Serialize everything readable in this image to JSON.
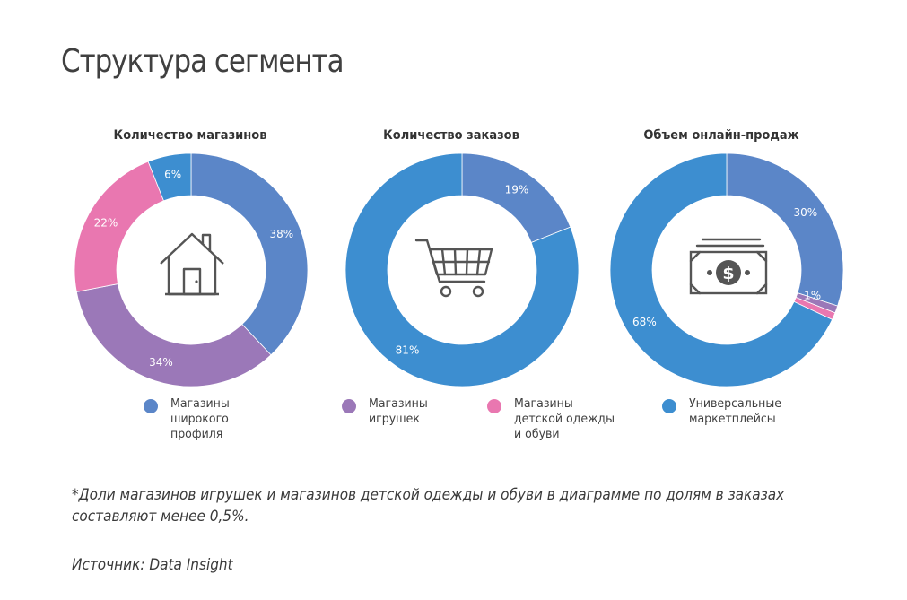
{
  "page": {
    "title": "Структура сегмента",
    "footnote": "*Доли магазинов игрушек и магазинов детской одежды и обуви в диаграмме по долям в заказах составляют менее 0,5%.",
    "source": "Источник: Data Insight"
  },
  "colors": {
    "broad_profile": "#5b86c8",
    "toys": "#9b78b8",
    "kids_clothing": "#e977b0",
    "marketplaces": "#3d8ed0"
  },
  "legend": [
    {
      "label": "Магазины\nширокого\nпрофиля",
      "color": "#5b86c8"
    },
    {
      "label": "Магазины\nигрушек",
      "color": "#9b78b8"
    },
    {
      "label": "Магазины\nдетской одежды\nи обуви",
      "color": "#e977b0"
    },
    {
      "label": "Универсальные\nмаркетплейсы",
      "color": "#3d8ed0"
    }
  ],
  "chart_data": [
    {
      "type": "pie",
      "title": "Количество магазинов",
      "center_icon": "house-icon",
      "slices": [
        {
          "category": "Магазины широкого профиля",
          "value": 38,
          "label": "38%",
          "color": "#5b86c8"
        },
        {
          "category": "Магазины игрушек",
          "value": 34,
          "label": "34%",
          "color": "#9b78b8"
        },
        {
          "category": "Магазины детской одежды и обуви",
          "value": 22,
          "label": "22%",
          "color": "#e977b0"
        },
        {
          "category": "Универсальные маркетплейсы",
          "value": 6,
          "label": "6%",
          "color": "#3d8ed0"
        }
      ]
    },
    {
      "type": "pie",
      "title": "Количество заказов",
      "center_icon": "shopping-cart-icon",
      "slices": [
        {
          "category": "Магазины широкого профиля",
          "value": 19,
          "label": "19%",
          "color": "#5b86c8"
        },
        {
          "category": "Универсальные маркетплейсы",
          "value": 81,
          "label": "81%",
          "color": "#3d8ed0"
        }
      ]
    },
    {
      "type": "pie",
      "title": "Объем онлайн-продаж",
      "center_icon": "money-icon",
      "slices": [
        {
          "category": "Магазины широкого профиля",
          "value": 30,
          "label": "30%",
          "color": "#5b86c8"
        },
        {
          "category": "Магазины игрушек",
          "value": 1,
          "label": "1%",
          "color": "#9b78b8"
        },
        {
          "category": "Магазины детской одежды и обуви",
          "value": 1,
          "label": "1%",
          "color": "#e977b0"
        },
        {
          "category": "Универсальные маркетплейсы",
          "value": 68,
          "label": "68%",
          "color": "#3d8ed0"
        }
      ]
    }
  ]
}
